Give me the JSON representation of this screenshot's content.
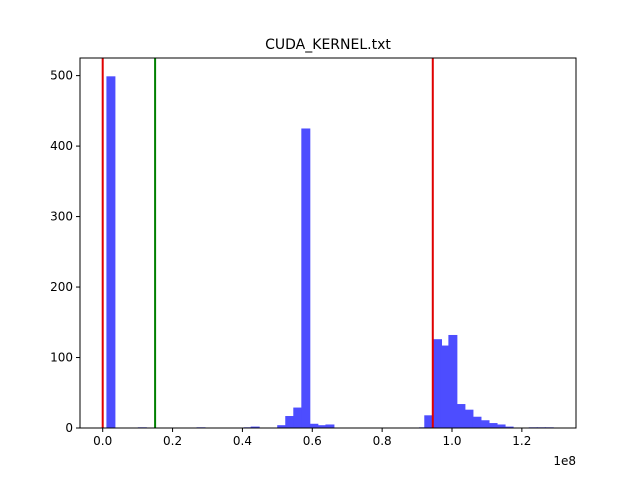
{
  "chart_data": {
    "type": "bar",
    "title": "CUDA_KERNEL.txt",
    "xlabel": "",
    "ylabel": "",
    "x_offset_label": "1e8",
    "xlim": [
      -0.065,
      1.355
    ],
    "ylim": [
      0,
      525
    ],
    "x_ticks": [
      {
        "value": 0.0,
        "label": "0.0"
      },
      {
        "value": 0.2,
        "label": "0.2"
      },
      {
        "value": 0.4,
        "label": "0.4"
      },
      {
        "value": 0.6,
        "label": "0.6"
      },
      {
        "value": 0.8,
        "label": "0.8"
      },
      {
        "value": 1.0,
        "label": "1.0"
      },
      {
        "value": 1.2,
        "label": "1.2"
      }
    ],
    "y_ticks": [
      {
        "value": 0,
        "label": "0"
      },
      {
        "value": 100,
        "label": "100"
      },
      {
        "value": 200,
        "label": "200"
      },
      {
        "value": 300,
        "label": "300"
      },
      {
        "value": 400,
        "label": "400"
      },
      {
        "value": 500,
        "label": "500"
      }
    ],
    "grid": false,
    "bar_color": "#4d4dff",
    "bin_width": 0.02575,
    "bins": [
      {
        "x": 0.0235,
        "count": 499
      },
      {
        "x": 0.1135,
        "count": 1
      },
      {
        "x": 0.2815,
        "count": 1
      },
      {
        "x": 0.4165,
        "count": 1
      },
      {
        "x": 0.4365,
        "count": 2
      },
      {
        "x": 0.5125,
        "count": 4
      },
      {
        "x": 0.5355,
        "count": 17
      },
      {
        "x": 0.5585,
        "count": 29
      },
      {
        "x": 0.5815,
        "count": 425
      },
      {
        "x": 0.6045,
        "count": 6
      },
      {
        "x": 0.6275,
        "count": 4
      },
      {
        "x": 0.6505,
        "count": 5
      },
      {
        "x": 0.9185,
        "count": 1
      },
      {
        "x": 0.9335,
        "count": 18
      },
      {
        "x": 0.9585,
        "count": 126
      },
      {
        "x": 0.9795,
        "count": 117
      },
      {
        "x": 1.0025,
        "count": 132
      },
      {
        "x": 1.0255,
        "count": 34
      },
      {
        "x": 1.0485,
        "count": 26
      },
      {
        "x": 1.0715,
        "count": 16
      },
      {
        "x": 1.0945,
        "count": 11
      },
      {
        "x": 1.1175,
        "count": 7
      },
      {
        "x": 1.1405,
        "count": 5
      },
      {
        "x": 1.1635,
        "count": 2
      },
      {
        "x": 1.2325,
        "count": 1
      },
      {
        "x": 1.2555,
        "count": 1
      },
      {
        "x": 1.2785,
        "count": 1
      }
    ],
    "vlines": [
      {
        "x": 0.0,
        "color": "#e00000"
      },
      {
        "x": 0.15,
        "color": "#008000"
      },
      {
        "x": 0.945,
        "color": "#e00000"
      }
    ]
  }
}
